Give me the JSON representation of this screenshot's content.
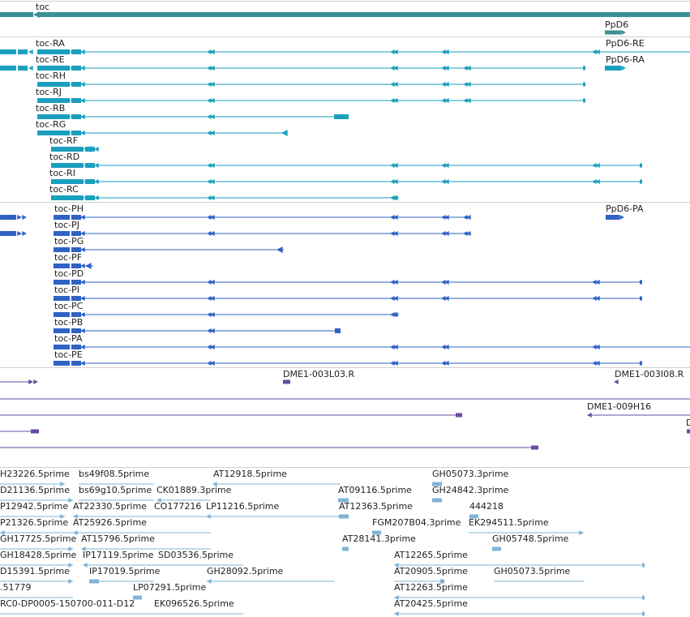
{
  "colors": {
    "gene": "#3a9094",
    "rna": "#1a9fbf",
    "protein": "#2f62c4",
    "clone": "#6a4ba5",
    "est": "#7fb4d6"
  },
  "tracks": {
    "gene": {
      "items": [
        {
          "label": "toc",
          "interactable": true
        },
        {
          "label": "PpD6",
          "interactable": true
        }
      ]
    },
    "transcripts": {
      "items": [
        "toc-RA",
        "toc-RE",
        "toc-RH",
        "toc-RJ",
        "toc-RB",
        "toc-RG",
        "toc-RF",
        "toc-RD",
        "toc-RI",
        "toc-RC",
        "PpD6-RE",
        "PpD6-RA"
      ]
    },
    "proteins": {
      "items": [
        "toc-PH",
        "toc-PJ",
        "toc-PG",
        "toc-PF",
        "toc-PD",
        "toc-PI",
        "toc-PC",
        "toc-PB",
        "toc-PA",
        "toc-PE",
        "PpD6-PA"
      ]
    },
    "clones": {
      "items": [
        "DME1-003L03.R",
        "DME1-003I08.R",
        "DME1-009H16",
        "D"
      ]
    },
    "ests": {
      "items": [
        "H23226.5prime",
        "bs49f08.5prime",
        "AT12918.5prime",
        "GH05073.3prime",
        "D21136.5prime",
        "bs69g10.5prime",
        "CK01889.3prime",
        "AT09116.5prime",
        "GH24842.3prime",
        "P12942.5prime",
        "AT22330.5prime",
        "CO177216",
        "LP11216.5prime",
        "AT12363.5prime",
        "444218",
        "P21326.5prime",
        "AT25926.5prime",
        "FGM207B04.3prime",
        "EK294511.5prime",
        "GH17725.5prime",
        "AT15796.5prime",
        "AT28141.3prime",
        "GH05748.5prime",
        "GH18428.5prime",
        "IP17119.5prime",
        "SD03536.5prime",
        "AT12265.5prime",
        "D15391.5prime",
        "IP17019.5prime",
        "GH28092.5prime",
        "AT20905.5prime",
        "GH05073.5prime",
        ".51779",
        "LP07291.5prime",
        "AT12263.5prime",
        "RC0-DP0005-150700-011-D12",
        "EK096526.5prime",
        "AT20425.5prime"
      ]
    }
  }
}
